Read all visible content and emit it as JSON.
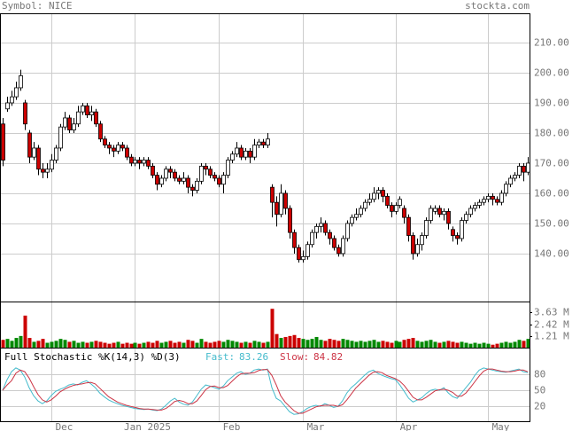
{
  "chart_data": {
    "type": "candlestick",
    "title": "Symbol: NICE",
    "source": "stockta.com",
    "month_starts": [
      {
        "label": "Dec",
        "index": 11
      },
      {
        "label": "Jan 2025",
        "index": 30
      },
      {
        "label": "Feb",
        "index": 49
      },
      {
        "label": "Mar",
        "index": 68
      },
      {
        "label": "Apr",
        "index": 89
      },
      {
        "label": "May",
        "index": 110
      }
    ],
    "ylim": [
      124.1,
      219.7
    ],
    "yticks": [
      {
        "value": 140,
        "label": "140.00"
      },
      {
        "value": 150,
        "label": "150.00"
      },
      {
        "value": 160,
        "label": "160.00"
      },
      {
        "value": 170,
        "label": "170.00"
      },
      {
        "value": 180,
        "label": "180.00"
      },
      {
        "value": 190,
        "label": "190.00"
      },
      {
        "value": 200,
        "label": "200.00"
      },
      {
        "value": 210,
        "label": "210.00"
      }
    ],
    "grid": true,
    "up_color": "#ffffff",
    "down_color": "#cc0000",
    "open": [
      183,
      188,
      190,
      192,
      195,
      190,
      180,
      172,
      175,
      168,
      167,
      168,
      171,
      175,
      182,
      185,
      181,
      183,
      187,
      189,
      186,
      187,
      183,
      178,
      176,
      175,
      174,
      176,
      175,
      172,
      170,
      171,
      170,
      171,
      169,
      166,
      163,
      165,
      168,
      167,
      165,
      164,
      165,
      162,
      161,
      164,
      169,
      168,
      166,
      165,
      163,
      166,
      171,
      173,
      175,
      172,
      174,
      172,
      176,
      177,
      176,
      162,
      157,
      153,
      160,
      155,
      147,
      142,
      138,
      139,
      143,
      147,
      149,
      150,
      147,
      145,
      142,
      140,
      145,
      150,
      152,
      153,
      155,
      157,
      158,
      160,
      161,
      159,
      156,
      154,
      156,
      155,
      152,
      146,
      140,
      143,
      146,
      151,
      154,
      155,
      153,
      154,
      148,
      146,
      145,
      151,
      153,
      155,
      156,
      157,
      158,
      159,
      158,
      157,
      160,
      163,
      165,
      166,
      169,
      167
    ],
    "high": [
      185,
      192,
      194,
      197,
      201,
      191,
      181,
      177,
      176,
      170,
      170,
      173,
      176,
      183,
      187,
      186,
      185,
      189,
      190,
      190,
      189,
      188,
      184,
      179,
      177,
      176,
      177,
      177,
      176,
      173,
      172,
      172,
      172,
      172,
      170,
      167,
      166,
      169,
      169,
      168,
      166,
      167,
      166,
      163,
      165,
      170,
      170,
      169,
      167,
      166,
      167,
      172,
      174,
      177,
      176,
      175,
      175,
      178,
      178,
      178,
      180,
      163,
      159,
      163,
      161,
      156,
      148,
      143,
      141,
      144,
      148,
      150,
      152,
      151,
      148,
      146,
      143,
      146,
      151,
      153,
      155,
      156,
      158,
      160,
      162,
      162,
      162,
      160,
      157,
      157,
      159,
      156,
      153,
      147,
      145,
      147,
      152,
      156,
      156,
      156,
      155,
      155,
      149,
      147,
      152,
      154,
      156,
      157,
      158,
      159,
      160,
      160,
      159,
      161,
      164,
      166,
      167,
      170,
      170,
      172
    ],
    "low": [
      169,
      187,
      189,
      191,
      194,
      181,
      170,
      171,
      166,
      165,
      165,
      167,
      170,
      174,
      181,
      180,
      180,
      182,
      186,
      185,
      184,
      182,
      177,
      175,
      173,
      172,
      173,
      174,
      171,
      169,
      169,
      168,
      169,
      168,
      165,
      161,
      162,
      164,
      165,
      164,
      163,
      163,
      160,
      159,
      160,
      163,
      166,
      165,
      164,
      162,
      160,
      165,
      170,
      172,
      171,
      171,
      170,
      171,
      175,
      175,
      175,
      152,
      149,
      152,
      153,
      145,
      140,
      137,
      137,
      138,
      142,
      145,
      147,
      146,
      143,
      141,
      139,
      139,
      144,
      149,
      151,
      152,
      154,
      156,
      157,
      158,
      157,
      155,
      152,
      153,
      155,
      150,
      144,
      138,
      139,
      141,
      145,
      150,
      153,
      152,
      151,
      148,
      144,
      143,
      144,
      150,
      152,
      154,
      155,
      156,
      157,
      156,
      156,
      156,
      159,
      162,
      164,
      165,
      164,
      166
    ],
    "close": [
      171,
      190,
      192,
      195,
      199,
      183,
      172,
      175,
      168,
      167,
      168,
      171,
      175,
      182,
      185,
      181,
      183,
      187,
      189,
      186,
      187,
      183,
      178,
      176,
      175,
      174,
      176,
      175,
      172,
      170,
      171,
      170,
      171,
      169,
      166,
      163,
      165,
      168,
      167,
      165,
      164,
      165,
      162,
      161,
      164,
      169,
      168,
      166,
      165,
      163,
      166,
      171,
      173,
      175,
      172,
      174,
      172,
      176,
      177,
      176,
      178,
      157,
      153,
      160,
      155,
      147,
      142,
      138,
      139,
      143,
      147,
      149,
      150,
      147,
      145,
      142,
      140,
      145,
      150,
      152,
      153,
      155,
      157,
      158,
      160,
      161,
      159,
      156,
      154,
      156,
      158,
      152,
      146,
      140,
      143,
      146,
      151,
      155,
      155,
      153,
      154,
      150,
      146,
      145,
      151,
      153,
      155,
      156,
      157,
      158,
      159,
      158,
      157,
      160,
      163,
      165,
      166,
      169,
      167,
      170
    ],
    "volume": {
      "up_color": "#008800",
      "down_color": "#cc0000",
      "ylim": [
        0,
        4.75
      ],
      "yticks": [
        {
          "value": 1.21,
          "label": "1.21 M"
        },
        {
          "value": 2.42,
          "label": "2.42 M"
        },
        {
          "value": 3.63,
          "label": "3.63 M"
        }
      ],
      "values": [
        0.8,
        0.9,
        0.7,
        1.0,
        1.2,
        3.3,
        1.0,
        0.6,
        0.7,
        0.9,
        0.5,
        0.6,
        0.7,
        0.9,
        0.8,
        0.6,
        0.7,
        0.5,
        0.6,
        0.5,
        0.6,
        0.7,
        0.6,
        0.5,
        0.4,
        0.5,
        0.6,
        0.4,
        0.5,
        0.4,
        0.5,
        0.4,
        0.5,
        0.6,
        0.5,
        0.7,
        0.5,
        0.6,
        0.7,
        0.5,
        0.6,
        0.5,
        0.8,
        0.7,
        0.5,
        0.9,
        0.6,
        0.5,
        0.6,
        0.7,
        0.6,
        0.8,
        0.7,
        0.6,
        0.5,
        0.6,
        0.5,
        0.7,
        0.6,
        0.5,
        0.6,
        4.0,
        1.4,
        1.0,
        1.1,
        1.2,
        1.3,
        1.0,
        0.9,
        0.8,
        0.9,
        1.1,
        0.8,
        0.7,
        0.9,
        0.8,
        0.7,
        0.9,
        0.8,
        0.7,
        0.6,
        0.7,
        0.6,
        0.7,
        0.8,
        0.6,
        0.7,
        0.6,
        0.5,
        0.7,
        0.6,
        0.8,
        0.9,
        1.0,
        0.7,
        0.6,
        0.7,
        0.8,
        0.6,
        0.5,
        0.6,
        0.7,
        0.6,
        0.5,
        0.6,
        0.5,
        0.4,
        0.5,
        0.4,
        0.5,
        0.4,
        0.3,
        0.4,
        0.5,
        0.6,
        0.5,
        0.6,
        0.8,
        0.7,
        0.9
      ]
    },
    "stochastic": {
      "title": "Full Stochastic %K(14,3) %D(3)",
      "ylim": [
        -8,
        130
      ],
      "yticks": [
        20,
        50,
        80
      ],
      "series": [
        {
          "name": "Fast:",
          "color": "#44bbcc",
          "values": [
            50,
            70,
            85,
            92,
            88,
            75,
            55,
            40,
            30,
            25,
            30,
            40,
            48,
            52,
            55,
            60,
            62,
            60,
            65,
            68,
            62,
            55,
            45,
            38,
            32,
            28,
            25,
            22,
            20,
            18,
            16,
            15,
            14,
            15,
            13,
            12,
            15,
            22,
            30,
            35,
            28,
            24,
            22,
            28,
            40,
            52,
            60,
            58,
            55,
            52,
            58,
            68,
            75,
            82,
            85,
            80,
            82,
            88,
            90,
            88,
            90,
            55,
            35,
            30,
            20,
            10,
            5,
            6,
            10,
            16,
            20,
            22,
            20,
            25,
            22,
            18,
            20,
            30,
            45,
            55,
            62,
            70,
            78,
            85,
            88,
            82,
            78,
            75,
            72,
            70,
            60,
            48,
            35,
            28,
            32,
            36,
            44,
            50,
            52,
            50,
            55,
            45,
            38,
            35,
            45,
            55,
            65,
            78,
            88,
            92,
            90,
            88,
            86,
            85,
            84,
            86,
            88,
            90,
            85,
            83.26
          ]
        },
        {
          "name": "Slow:",
          "color": "#cc3344",
          "values": [
            50,
            60,
            68,
            82,
            88,
            85,
            73,
            57,
            42,
            32,
            28,
            32,
            39,
            47,
            52,
            56,
            59,
            61,
            62,
            64,
            65,
            62,
            54,
            46,
            38,
            33,
            28,
            25,
            22,
            20,
            18,
            16,
            15,
            15,
            14,
            13,
            13,
            16,
            22,
            29,
            31,
            29,
            25,
            25,
            30,
            40,
            51,
            57,
            58,
            55,
            55,
            59,
            67,
            75,
            81,
            82,
            82,
            83,
            87,
            89,
            89,
            78,
            60,
            40,
            28,
            20,
            12,
            7,
            7,
            11,
            15,
            19,
            21,
            22,
            22,
            22,
            20,
            23,
            32,
            43,
            54,
            62,
            70,
            78,
            84,
            85,
            83,
            78,
            75,
            72,
            67,
            59,
            48,
            37,
            32,
            32,
            37,
            43,
            49,
            51,
            52,
            50,
            46,
            39,
            39,
            45,
            55,
            66,
            77,
            86,
            90,
            90,
            88,
            86,
            85,
            85,
            86,
            88,
            88,
            84.82
          ]
        }
      ]
    }
  }
}
